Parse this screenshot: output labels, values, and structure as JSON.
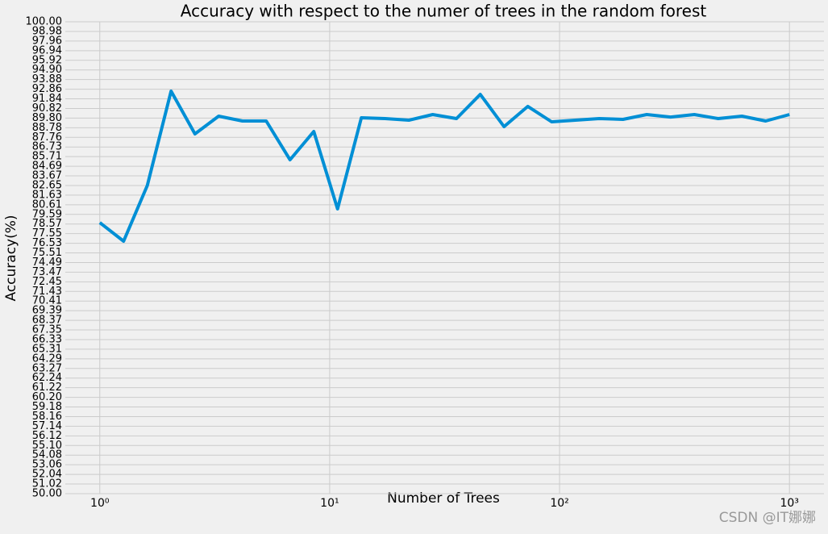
{
  "chart_data": {
    "type": "line",
    "title": "Accuracy with respect to the numer of trees in the random forest",
    "x_label": "Number of Trees",
    "y_label": "Accuracy(%)",
    "watermark": "CSDN @IT娜娜",
    "xscale": "log",
    "grid": true,
    "xlim": [
      0.708,
      1413
    ],
    "ylim": [
      50,
      100
    ],
    "xticks": [
      {
        "value": 1,
        "label": "10⁰"
      },
      {
        "value": 10,
        "label": "10¹"
      },
      {
        "value": 100,
        "label": "10²"
      },
      {
        "value": 1000,
        "label": "10³"
      }
    ],
    "yticks": [
      {
        "value": 50,
        "label": "50.00"
      },
      {
        "value": 51.0204,
        "label": "51.02"
      },
      {
        "value": 52.0408,
        "label": "52.04"
      },
      {
        "value": 53.0612,
        "label": "53.06"
      },
      {
        "value": 54.0816,
        "label": "54.08"
      },
      {
        "value": 55.102,
        "label": "55.10"
      },
      {
        "value": 56.1224,
        "label": "56.12"
      },
      {
        "value": 57.1429,
        "label": "57.14"
      },
      {
        "value": 58.1633,
        "label": "58.16"
      },
      {
        "value": 59.1837,
        "label": "59.18"
      },
      {
        "value": 60.2041,
        "label": "60.20"
      },
      {
        "value": 61.2245,
        "label": "61.22"
      },
      {
        "value": 62.2449,
        "label": "62.24"
      },
      {
        "value": 63.2653,
        "label": "63.27"
      },
      {
        "value": 64.2857,
        "label": "64.29"
      },
      {
        "value": 65.3061,
        "label": "65.31"
      },
      {
        "value": 66.3265,
        "label": "66.33"
      },
      {
        "value": 67.3469,
        "label": "67.35"
      },
      {
        "value": 68.3673,
        "label": "68.37"
      },
      {
        "value": 69.3878,
        "label": "69.39"
      },
      {
        "value": 70.4082,
        "label": "70.41"
      },
      {
        "value": 71.4286,
        "label": "71.43"
      },
      {
        "value": 72.449,
        "label": "72.45"
      },
      {
        "value": 73.4694,
        "label": "73.47"
      },
      {
        "value": 74.4898,
        "label": "74.49"
      },
      {
        "value": 75.5102,
        "label": "75.51"
      },
      {
        "value": 76.5306,
        "label": "76.53"
      },
      {
        "value": 77.551,
        "label": "77.55"
      },
      {
        "value": 78.5714,
        "label": "78.57"
      },
      {
        "value": 79.5918,
        "label": "79.59"
      },
      {
        "value": 80.6122,
        "label": "80.61"
      },
      {
        "value": 81.6327,
        "label": "81.63"
      },
      {
        "value": 82.6531,
        "label": "82.65"
      },
      {
        "value": 83.6735,
        "label": "83.67"
      },
      {
        "value": 84.6939,
        "label": "84.69"
      },
      {
        "value": 85.7143,
        "label": "85.71"
      },
      {
        "value": 86.7347,
        "label": "86.73"
      },
      {
        "value": 87.7551,
        "label": "87.76"
      },
      {
        "value": 88.7755,
        "label": "88.78"
      },
      {
        "value": 89.7959,
        "label": "89.80"
      },
      {
        "value": 90.8163,
        "label": "90.82"
      },
      {
        "value": 91.8367,
        "label": "91.84"
      },
      {
        "value": 92.8571,
        "label": "92.86"
      },
      {
        "value": 93.8776,
        "label": "93.88"
      },
      {
        "value": 94.898,
        "label": "94.90"
      },
      {
        "value": 95.9184,
        "label": "95.92"
      },
      {
        "value": 96.9388,
        "label": "96.94"
      },
      {
        "value": 97.9592,
        "label": "97.96"
      },
      {
        "value": 98.9796,
        "label": "98.98"
      },
      {
        "value": 100,
        "label": "100.00"
      }
    ],
    "x": [
      1,
      1.269,
      1.61,
      2.043,
      2.593,
      3.29,
      4.175,
      5.298,
      6.723,
      8.532,
      10.826,
      13.738,
      17.433,
      22.122,
      28.072,
      35.622,
      45.204,
      57.362,
      72.79,
      92.367,
      117.21,
      148.74,
      188.74,
      239.5,
      303.92,
      385.66,
      489.39,
      621.02,
      788.05,
      1000
    ],
    "series": [
      {
        "color": "#008fd5",
        "values": [
          78.72,
          76.75,
          82.65,
          92.65,
          88.12,
          90.0,
          89.49,
          89.49,
          85.38,
          88.38,
          80.17,
          89.83,
          89.74,
          89.57,
          90.17,
          89.74,
          92.31,
          88.89,
          91.03,
          89.4,
          89.57,
          89.74,
          89.66,
          90.17,
          89.91,
          90.17,
          89.74,
          90.0,
          89.49,
          90.17
        ]
      }
    ]
  }
}
